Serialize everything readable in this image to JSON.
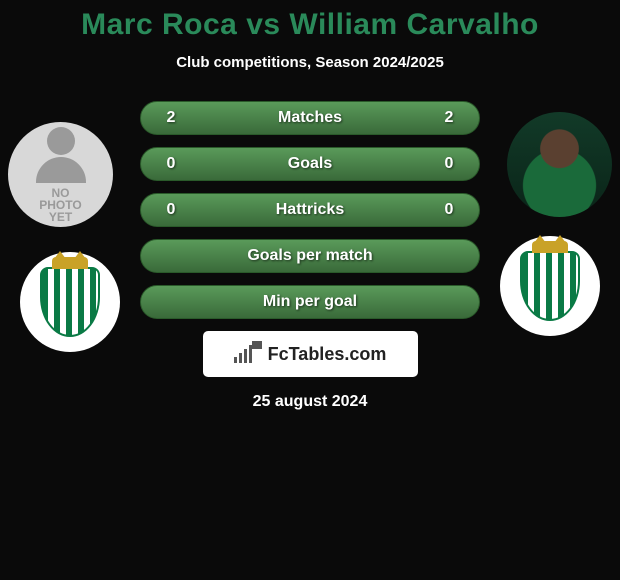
{
  "header": {
    "player_left": "Marc Roca",
    "vs": "vs",
    "player_right": "William Carvalho",
    "title_color": "#2a8a5a"
  },
  "subtitle": "Club competitions, Season 2024/2025",
  "stats": {
    "row_bg_dark": "#3a6a3a",
    "row_bg_light": "#5a9a5a",
    "row_border": "#2a5a2a",
    "rows": [
      {
        "label": "Matches",
        "left": "2",
        "right": "2"
      },
      {
        "label": "Goals",
        "left": "0",
        "right": "0"
      },
      {
        "label": "Hattricks",
        "left": "0",
        "right": "0"
      },
      {
        "label": "Goals per match",
        "left": "",
        "right": ""
      },
      {
        "label": "Min per goal",
        "left": "",
        "right": ""
      }
    ]
  },
  "footer": {
    "brand_text": "FcTables.com",
    "date": "25 august 2024"
  },
  "players": {
    "left": {
      "no_photo_line1": "NO",
      "no_photo_line2": "PHOTO",
      "no_photo_line3": "YET"
    },
    "right": {
      "has_photo": true
    }
  }
}
